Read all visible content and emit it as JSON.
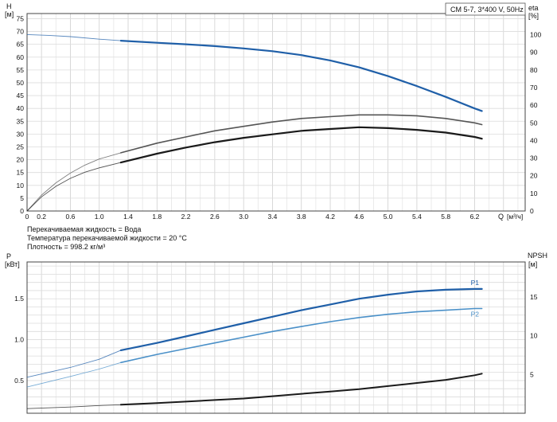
{
  "chart_data": [
    {
      "type": "line",
      "legend_text": "CM 5-7, 3*400 V, 50Hz",
      "y_left": {
        "label": "H",
        "unit": "[м]",
        "ticks": [
          "0",
          "5",
          "10",
          "15",
          "20",
          "25",
          "30",
          "35",
          "40",
          "45",
          "50",
          "55",
          "60",
          "65",
          "70",
          "75"
        ],
        "range": [
          0,
          77
        ]
      },
      "y_right": {
        "label": "eta",
        "unit": "[%]",
        "ticks": [
          "0",
          "10",
          "20",
          "30",
          "40",
          "50",
          "60",
          "70",
          "80",
          "90",
          "100"
        ],
        "range": [
          0,
          112
        ]
      },
      "x": {
        "label": "Q",
        "unit": "[м³/ч]",
        "ticks": [
          "0",
          "0.2",
          "0.6",
          "1.0",
          "1.4",
          "1.8",
          "2.2",
          "2.6",
          "3.0",
          "3.4",
          "3.8",
          "4.2",
          "4.6",
          "5.0",
          "5.4",
          "5.8",
          "6.2"
        ],
        "range": [
          0,
          6.9
        ]
      },
      "grid": true,
      "notes": [
        "Перекачиваемая жидкость = Вода",
        "Температура перекачиваемой жидкости = 20 °C",
        "Плотность = 998.2 кг/м³"
      ],
      "series": [
        {
          "axis": "left",
          "color": "#1f5fa8",
          "width": 2.2,
          "ext_until": 1.3,
          "points": [
            [
              0,
              68.8
            ],
            [
              0.3,
              68.5
            ],
            [
              0.6,
              68.0
            ],
            [
              1.0,
              67.0
            ],
            [
              1.3,
              66.4
            ],
            [
              1.8,
              65.6
            ],
            [
              2.2,
              65.0
            ],
            [
              2.6,
              64.3
            ],
            [
              3.0,
              63.4
            ],
            [
              3.4,
              62.3
            ],
            [
              3.8,
              60.8
            ],
            [
              4.2,
              58.7
            ],
            [
              4.6,
              56.0
            ],
            [
              5.0,
              52.6
            ],
            [
              5.4,
              48.7
            ],
            [
              5.8,
              44.5
            ],
            [
              6.2,
              40.0
            ],
            [
              6.3,
              39.0
            ]
          ]
        },
        {
          "axis": "right",
          "color": "#555555",
          "width": 1.6,
          "ext_until": 1.3,
          "points": [
            [
              0,
              0
            ],
            [
              0.2,
              9
            ],
            [
              0.4,
              16
            ],
            [
              0.6,
              21.5
            ],
            [
              0.8,
              26
            ],
            [
              1.0,
              29.5
            ],
            [
              1.3,
              33
            ],
            [
              1.8,
              38.5
            ],
            [
              2.2,
              42
            ],
            [
              2.6,
              45.5
            ],
            [
              3.0,
              48
            ],
            [
              3.4,
              50.5
            ],
            [
              3.8,
              52.5
            ],
            [
              4.2,
              53.5
            ],
            [
              4.6,
              54.5
            ],
            [
              5.0,
              54.5
            ],
            [
              5.4,
              54
            ],
            [
              5.8,
              52.5
            ],
            [
              6.2,
              50
            ],
            [
              6.3,
              49
            ]
          ]
        },
        {
          "axis": "right",
          "color": "#1a1a1a",
          "width": 2.2,
          "ext_until": 1.3,
          "points": [
            [
              0,
              0
            ],
            [
              0.2,
              8
            ],
            [
              0.4,
              14
            ],
            [
              0.6,
              18.5
            ],
            [
              0.8,
              22
            ],
            [
              1.0,
              24.5
            ],
            [
              1.3,
              27.5
            ],
            [
              1.8,
              32.5
            ],
            [
              2.2,
              36
            ],
            [
              2.6,
              39
            ],
            [
              3.0,
              41.5
            ],
            [
              3.4,
              43.5
            ],
            [
              3.8,
              45.5
            ],
            [
              4.2,
              46.5
            ],
            [
              4.6,
              47.5
            ],
            [
              5.0,
              47
            ],
            [
              5.4,
              46
            ],
            [
              5.8,
              44.5
            ],
            [
              6.2,
              42
            ],
            [
              6.3,
              41
            ]
          ]
        }
      ]
    },
    {
      "type": "line",
      "y_left": {
        "label": "P",
        "unit": "[кВт]",
        "ticks": [
          "0.5",
          "1.0",
          "1.5"
        ],
        "range": [
          0.1,
          1.95
        ]
      },
      "y_right": {
        "label": "NPSH",
        "unit": "[м]",
        "ticks": [
          "5",
          "10",
          "15"
        ],
        "range": [
          0,
          19.5
        ]
      },
      "x": {
        "range": [
          0,
          6.9
        ]
      },
      "grid": true,
      "series": [
        {
          "name": "P1",
          "axis": "left",
          "color": "#1f5fa8",
          "width": 2.2,
          "ext_until": 1.3,
          "points": [
            [
              0,
              0.54
            ],
            [
              0.6,
              0.66
            ],
            [
              1.0,
              0.76
            ],
            [
              1.3,
              0.87
            ],
            [
              1.8,
              0.96
            ],
            [
              2.2,
              1.04
            ],
            [
              2.6,
              1.12
            ],
            [
              3.0,
              1.2
            ],
            [
              3.4,
              1.28
            ],
            [
              3.8,
              1.36
            ],
            [
              4.2,
              1.43
            ],
            [
              4.6,
              1.5
            ],
            [
              5.0,
              1.55
            ],
            [
              5.4,
              1.59
            ],
            [
              5.8,
              1.61
            ],
            [
              6.2,
              1.62
            ],
            [
              6.3,
              1.62
            ]
          ]
        },
        {
          "name": "P2",
          "axis": "left",
          "color": "#4a90c8",
          "width": 1.6,
          "ext_until": 1.3,
          "points": [
            [
              0,
              0.42
            ],
            [
              0.6,
              0.55
            ],
            [
              1.0,
              0.64
            ],
            [
              1.3,
              0.72
            ],
            [
              1.8,
              0.82
            ],
            [
              2.2,
              0.89
            ],
            [
              2.6,
              0.96
            ],
            [
              3.0,
              1.03
            ],
            [
              3.4,
              1.1
            ],
            [
              3.8,
              1.16
            ],
            [
              4.2,
              1.22
            ],
            [
              4.6,
              1.27
            ],
            [
              5.0,
              1.31
            ],
            [
              5.4,
              1.34
            ],
            [
              5.8,
              1.36
            ],
            [
              6.2,
              1.38
            ],
            [
              6.3,
              1.38
            ]
          ]
        },
        {
          "axis": "right",
          "color": "#1a1a1a",
          "width": 2.0,
          "ext_until": 1.3,
          "points": [
            [
              0,
              0.6
            ],
            [
              0.6,
              0.8
            ],
            [
              1.0,
              1.0
            ],
            [
              1.3,
              1.1
            ],
            [
              1.8,
              1.3
            ],
            [
              2.2,
              1.5
            ],
            [
              2.6,
              1.7
            ],
            [
              3.0,
              1.9
            ],
            [
              3.4,
              2.2
            ],
            [
              3.8,
              2.5
            ],
            [
              4.2,
              2.8
            ],
            [
              4.6,
              3.1
            ],
            [
              5.0,
              3.5
            ],
            [
              5.4,
              3.9
            ],
            [
              5.8,
              4.3
            ],
            [
              6.2,
              4.9
            ],
            [
              6.3,
              5.1
            ]
          ]
        }
      ]
    }
  ]
}
